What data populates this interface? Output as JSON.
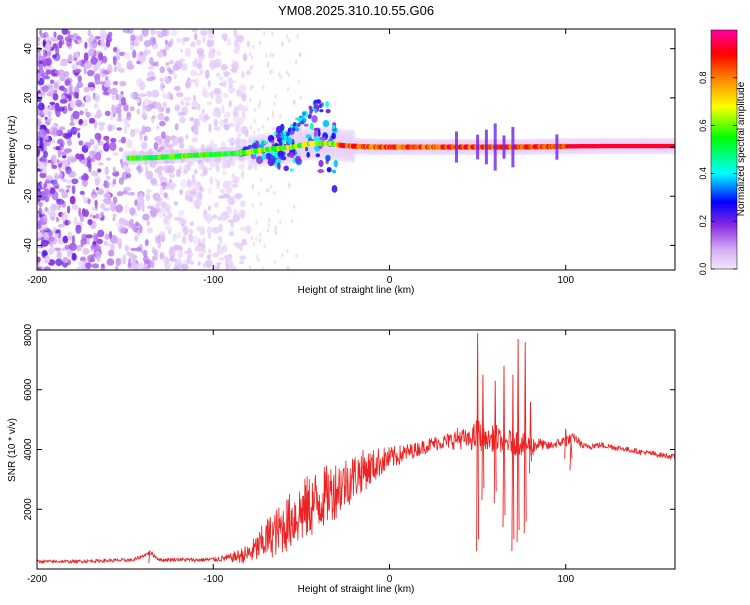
{
  "figure_title": "YM08.2025.310.10.55.G06",
  "chart_data": [
    {
      "type": "heatmap",
      "title": "YM08.2025.310.10.55.G06",
      "xlabel": "Height of straight line (km)",
      "ylabel": "Frequency (Hz)",
      "xlim": [
        -200,
        162
      ],
      "ylim": [
        -50,
        48
      ],
      "x_ticks": [
        -200,
        -100,
        0,
        100
      ],
      "x_tick_labels": [
        "-200",
        "-100",
        "0",
        "100"
      ],
      "y_ticks": [
        -40,
        -20,
        0,
        20,
        40
      ],
      "y_tick_labels": [
        "-40",
        "-20",
        "0",
        "20",
        "40"
      ],
      "colorbar": {
        "label": "Normalized spectral amplitude",
        "range": [
          0,
          1
        ],
        "ticks": [
          0.0,
          0.2,
          0.4,
          0.6,
          0.8
        ],
        "tick_labels": [
          "0.0",
          "0.2",
          "0.4",
          "0.6",
          "0.8"
        ],
        "colors": [
          "#e8d4f8",
          "#8a2be2",
          "#0000ff",
          "#00ffff",
          "#00ff00",
          "#ffff00",
          "#ff8000",
          "#ff0000",
          "#ff00a0"
        ]
      },
      "ridge": [
        {
          "x": -145,
          "y": -4.5
        },
        {
          "x": -130,
          "y": -4.2
        },
        {
          "x": -115,
          "y": -3.5
        },
        {
          "x": -100,
          "y": -3.0
        },
        {
          "x": -85,
          "y": -2.5
        },
        {
          "x": -70,
          "y": -1.0
        },
        {
          "x": -55,
          "y": 0.0
        },
        {
          "x": -45,
          "y": 1.5
        },
        {
          "x": -35,
          "y": 1.5
        },
        {
          "x": -25,
          "y": 0.5
        },
        {
          "x": -15,
          "y": 0.2
        },
        {
          "x": -5,
          "y": 0.0
        },
        {
          "x": 10,
          "y": 0.0
        },
        {
          "x": 40,
          "y": 0.0
        },
        {
          "x": 70,
          "y": 0.0
        },
        {
          "x": 100,
          "y": 0.3
        },
        {
          "x": 130,
          "y": 0.4
        },
        {
          "x": 162,
          "y": 0.4
        }
      ],
      "noise_region_x": [
        -200,
        -80
      ]
    },
    {
      "type": "line",
      "xlabel": "Height of straight line (km)",
      "ylabel": "SNR (10 * v/v)",
      "xlim": [
        -200,
        162
      ],
      "ylim": [
        0,
        8000
      ],
      "x_ticks": [
        -200,
        -100,
        0,
        100
      ],
      "x_tick_labels": [
        "-200",
        "-100",
        "0",
        "100"
      ],
      "y_ticks": [
        2000,
        4000,
        6000,
        8000
      ],
      "y_tick_labels": [
        "2000",
        "4000",
        "6000",
        "8000"
      ],
      "series": [
        {
          "name": "SNR",
          "color": "#ee2222",
          "x": [
            -200,
            -180,
            -160,
            -145,
            -136,
            -130,
            -120,
            -110,
            -100,
            -95,
            -90,
            -80,
            -75,
            -70,
            -65,
            -60,
            -55,
            -50,
            -45,
            -40,
            -35,
            -30,
            -25,
            -20,
            -15,
            -10,
            -5,
            0,
            5,
            10,
            15,
            20,
            25,
            30,
            35,
            40,
            45,
            50,
            55,
            60,
            65,
            70,
            75,
            80,
            85,
            90,
            95,
            100,
            105,
            110,
            120,
            130,
            140,
            150,
            162
          ],
          "values": [
            250,
            250,
            280,
            300,
            550,
            300,
            320,
            300,
            320,
            350,
            380,
            500,
            700,
            1000,
            1200,
            1400,
            1700,
            1900,
            2100,
            2300,
            2500,
            2700,
            2900,
            3100,
            3300,
            3400,
            3600,
            3700,
            3800,
            3900,
            4000,
            4100,
            4200,
            4250,
            4300,
            4400,
            4300,
            4500,
            4300,
            4400,
            4200,
            4300,
            4200,
            4100,
            4200,
            4100,
            4200,
            4300,
            4400,
            4100,
            4150,
            4050,
            3950,
            3850,
            3750
          ],
          "noise_amplitude": [
            50,
            50,
            60,
            60,
            60,
            60,
            60,
            60,
            80,
            100,
            150,
            350,
            500,
            700,
            800,
            900,
            1000,
            1100,
            1100,
            1100,
            1000,
            1000,
            900,
            800,
            700,
            600,
            500,
            400,
            350,
            300,
            250,
            250,
            250,
            250,
            300,
            400,
            300,
            600,
            300,
            500,
            300,
            500,
            400,
            400,
            200,
            150,
            150,
            200,
            150,
            120,
            100,
            90,
            90,
            90,
            90
          ]
        }
      ],
      "spikes": [
        {
          "x": 50,
          "high": 7900,
          "low": 600
        },
        {
          "x": 53,
          "high": 6500,
          "low": 2300
        },
        {
          "x": 60,
          "high": 6300,
          "low": 2200
        },
        {
          "x": 65,
          "high": 6800,
          "low": 1400
        },
        {
          "x": 70,
          "high": 6500,
          "low": 600
        },
        {
          "x": 73,
          "high": 7700,
          "low": 900
        },
        {
          "x": 77,
          "high": 7600,
          "low": 1200
        },
        {
          "x": 80,
          "high": 5600,
          "low": 3200
        },
        {
          "x": 100,
          "high": 4700,
          "low": 3700
        },
        {
          "x": 103,
          "high": 4300,
          "low": 3300
        },
        {
          "x": -136,
          "high": 600,
          "low": 200
        }
      ]
    }
  ]
}
